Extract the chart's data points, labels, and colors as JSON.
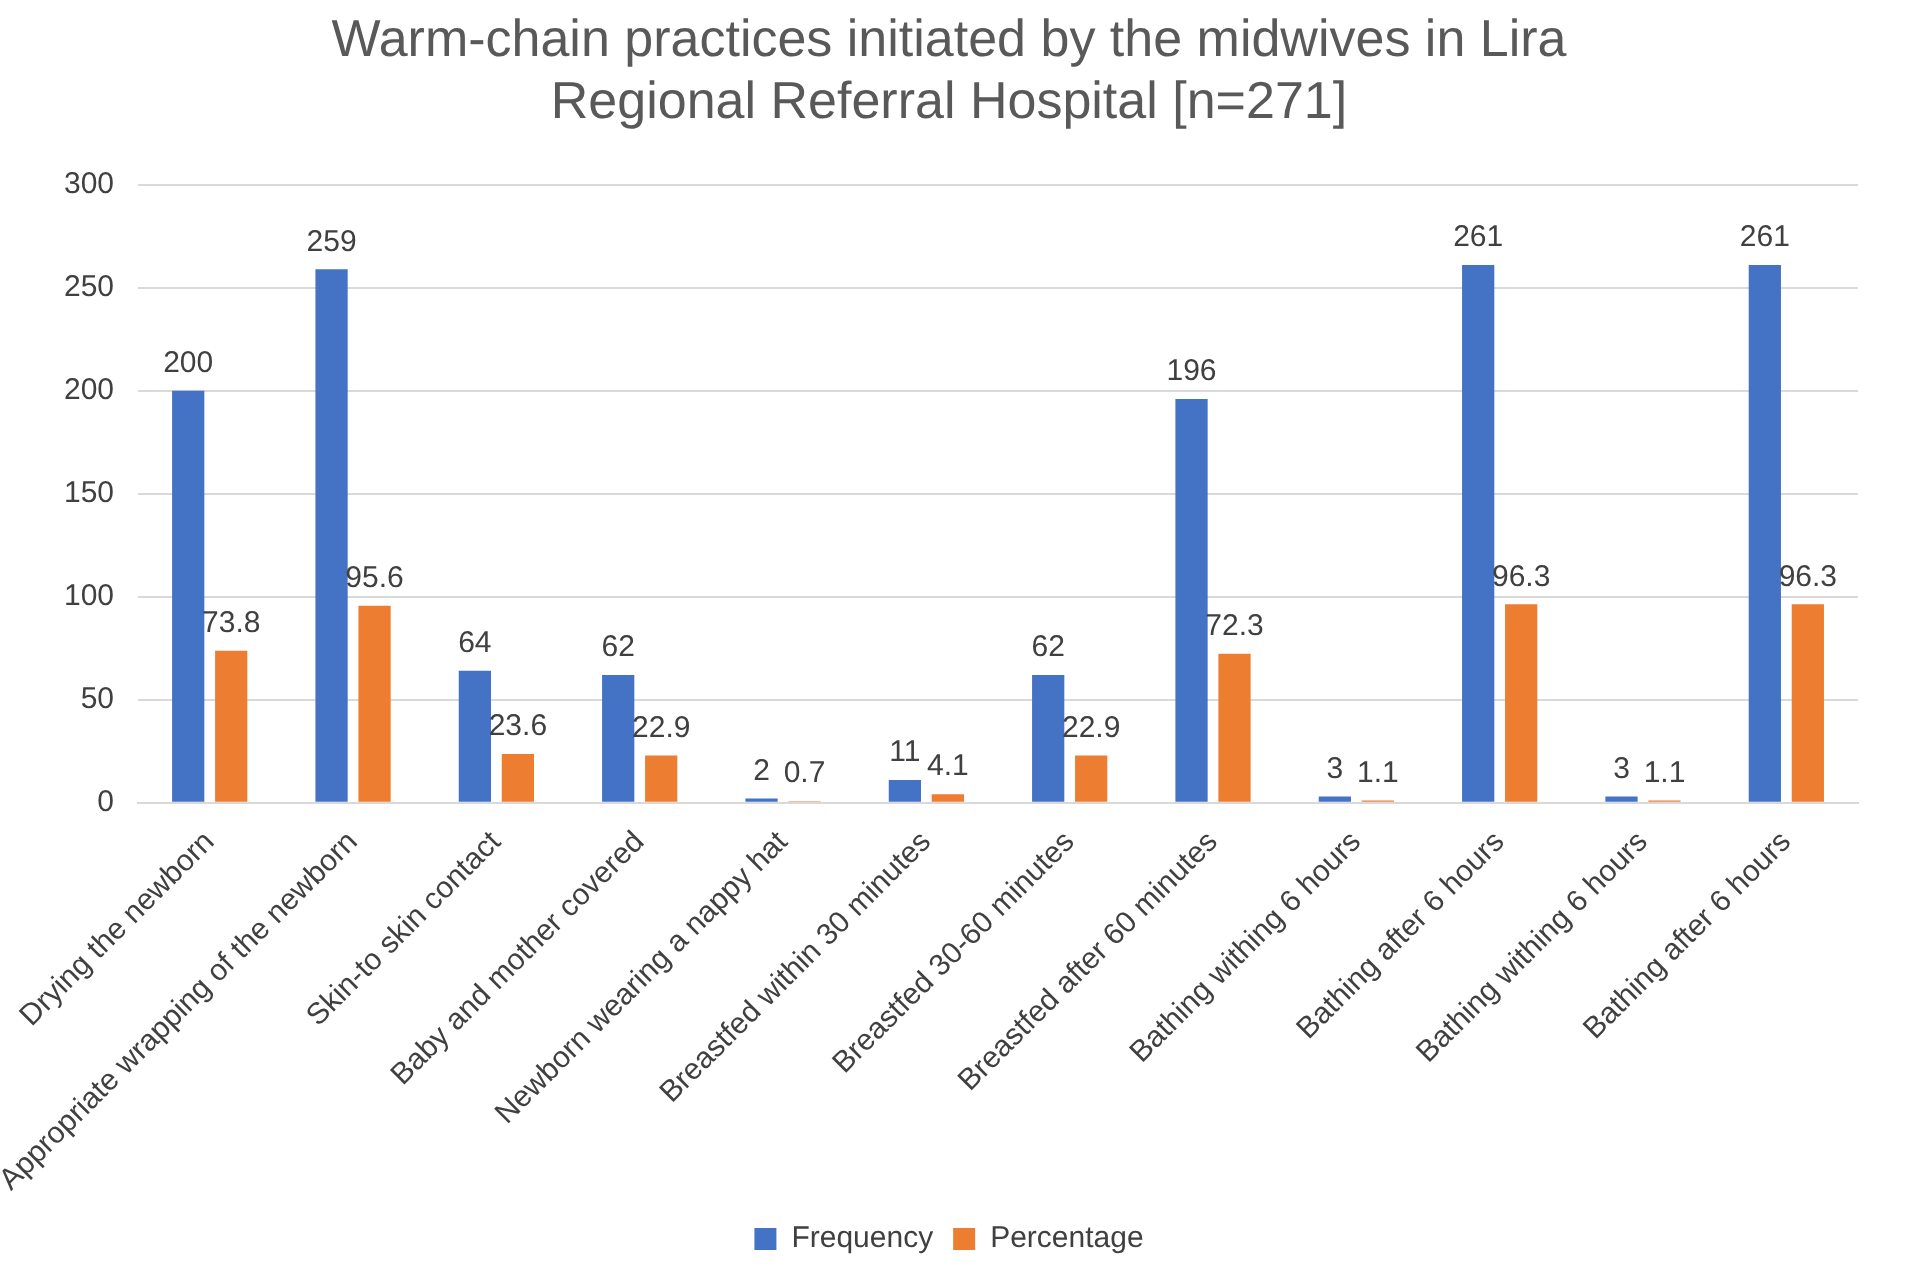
{
  "chart_data": {
    "type": "bar",
    "title": "Warm-chain practices initiated by the midwives in Lira Regional Referral Hospital [n=271]",
    "categories": [
      "Drying the newborn",
      "Appropriate wrapping of the newborn",
      "Skin-to skin contact",
      "Baby and mother covered",
      "Newborn wearing a nappy hat",
      "Breastfed within 30 minutes",
      "Breastfed 30-60 minutes",
      "Breastfed after 60 minutes",
      "Bathing withing 6 hours",
      "Bathing after 6 hours",
      "Bathing withing 6 hours",
      "Bathing after 6 hours"
    ],
    "series": [
      {
        "name": "Frequency",
        "color": "#4472c4",
        "values": [
          200,
          259,
          64,
          62,
          2,
          11,
          62,
          196,
          3,
          261,
          3,
          261
        ]
      },
      {
        "name": "Percentage",
        "color": "#ed7d31",
        "values": [
          73.8,
          95.6,
          23.6,
          22.9,
          0.7,
          4.1,
          22.9,
          72.3,
          1.1,
          96.3,
          1.1,
          96.3
        ]
      }
    ],
    "ylim": [
      0,
      300
    ],
    "yticks": [
      0,
      50,
      100,
      150,
      200,
      250,
      300
    ],
    "grid": "y",
    "legend": "bottom",
    "data_labels": true
  }
}
